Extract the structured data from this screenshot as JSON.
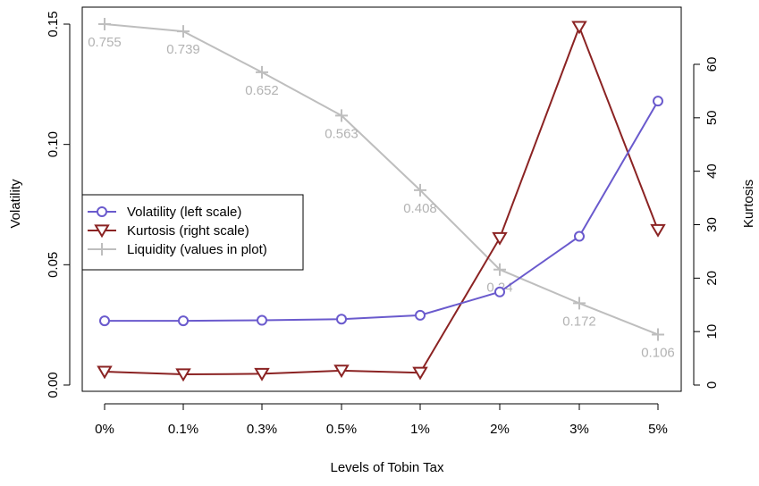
{
  "chart_data": {
    "type": "line",
    "xlabel": "Levels of Tobin Tax",
    "ylabel_left": "Volatility",
    "ylabel_right": "Kurtosis",
    "categories": [
      "0%",
      "0.1%",
      "0.3%",
      "0.5%",
      "1%",
      "2%",
      "3%",
      "5%"
    ],
    "left_axis": {
      "min": 0,
      "max": 0.15,
      "ticks": [
        "0.00",
        "0.05",
        "0.10",
        "0.15"
      ],
      "tick_values": [
        0,
        0.05,
        0.1,
        0.15
      ]
    },
    "right_axis": {
      "min": 0,
      "max": 60,
      "ticks": [
        "0",
        "10",
        "20",
        "30",
        "40",
        "50",
        "60"
      ],
      "tick_values": [
        0,
        10,
        20,
        30,
        40,
        50,
        60
      ]
    },
    "series": [
      {
        "name": "Volatility (left scale)",
        "axis": "left",
        "marker": "circle",
        "color": "#6a5acd",
        "values": [
          0.0267,
          0.0267,
          0.0269,
          0.0274,
          0.029,
          0.0387,
          0.0618,
          0.118
        ]
      },
      {
        "name": "Kurtosis (right scale)",
        "axis": "right",
        "marker": "triangle-down",
        "color": "#8b2323",
        "values": [
          2.5,
          2.0,
          2.1,
          2.7,
          2.3,
          27.5,
          67.0,
          29.0
        ]
      },
      {
        "name": "Liquidity (values in plot)",
        "axis": "left",
        "marker": "plus",
        "color": "#bebebe",
        "values": [
          0.15,
          0.147,
          0.13,
          0.112,
          0.081,
          0.048,
          0.034,
          0.021
        ],
        "point_labels": [
          "0.755",
          "0.739",
          "0.652",
          "0.563",
          "0.408",
          "0.24",
          "0.172",
          "0.106"
        ]
      }
    ],
    "legend_position": "left"
  }
}
